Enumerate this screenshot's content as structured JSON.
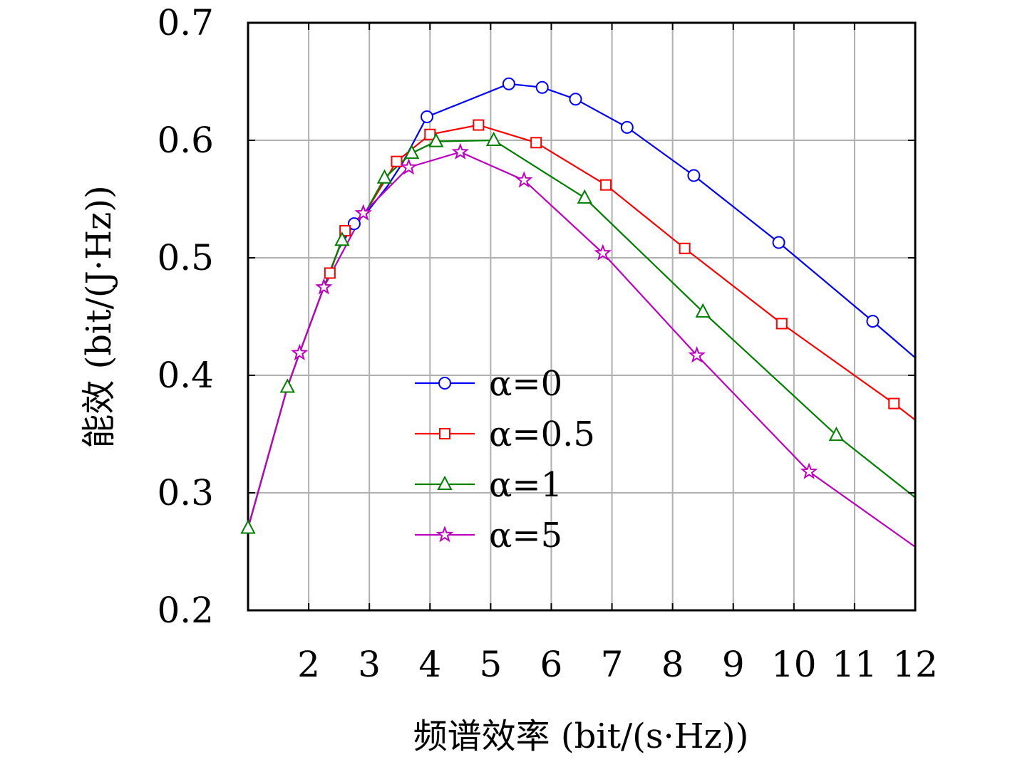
{
  "chart_data": {
    "type": "line",
    "title": "",
    "xlabel": "频谱效率 (bit/(s·Hz))",
    "ylabel": "能效 (bit/(J·Hz))",
    "xlim": [
      1,
      12
    ],
    "ylim": [
      0.2,
      0.7
    ],
    "xticks": [
      "2",
      "3",
      "4",
      "5",
      "6",
      "7",
      "8",
      "9",
      "10",
      "11",
      "12"
    ],
    "yticks": [
      "0.2",
      "0.3",
      "0.4",
      "0.5",
      "0.6",
      "0.7"
    ],
    "grid": true,
    "legend_position": "center",
    "series": [
      {
        "name": "α=0",
        "color": "#0000ff",
        "marker": "circle",
        "x": [
          1.0,
          1.65,
          1.85,
          2.25,
          2.5,
          2.75,
          2.95,
          3.3,
          3.55,
          3.95,
          5.3,
          5.85,
          6.4,
          7.25,
          8.35,
          9.75,
          11.3,
          12.0
        ],
        "y": [
          0.27,
          0.39,
          0.419,
          0.475,
          0.508,
          0.529,
          0.538,
          0.561,
          0.581,
          0.62,
          0.648,
          0.645,
          0.635,
          0.611,
          0.57,
          0.513,
          0.446,
          0.415
        ],
        "markers": [
          [
            2.75,
            0.529
          ],
          [
            3.95,
            0.62
          ],
          [
            5.3,
            0.648
          ],
          [
            5.85,
            0.645
          ],
          [
            6.4,
            0.635
          ],
          [
            7.25,
            0.611
          ],
          [
            8.35,
            0.57
          ],
          [
            9.75,
            0.513
          ],
          [
            11.3,
            0.446
          ]
        ]
      },
      {
        "name": "α=0.5",
        "color": "#ff0000",
        "marker": "square",
        "x": [
          1.0,
          1.65,
          1.85,
          2.25,
          2.35,
          2.6,
          2.95,
          3.45,
          4.0,
          4.8,
          5.75,
          6.9,
          8.2,
          9.8,
          11.65,
          12.0
        ],
        "y": [
          0.27,
          0.39,
          0.419,
          0.475,
          0.487,
          0.523,
          0.54,
          0.582,
          0.605,
          0.613,
          0.598,
          0.562,
          0.508,
          0.444,
          0.376,
          0.362
        ],
        "markers": [
          [
            2.35,
            0.487
          ],
          [
            2.6,
            0.523
          ],
          [
            3.45,
            0.582
          ],
          [
            4.0,
            0.605
          ],
          [
            4.8,
            0.613
          ],
          [
            5.75,
            0.598
          ],
          [
            6.9,
            0.562
          ],
          [
            8.2,
            0.508
          ],
          [
            9.8,
            0.444
          ],
          [
            11.65,
            0.376
          ]
        ]
      },
      {
        "name": "α=1",
        "color": "#008000",
        "marker": "triangle",
        "x": [
          1.0,
          1.65,
          1.85,
          2.25,
          2.55,
          2.95,
          3.25,
          3.7,
          4.1,
          5.05,
          6.55,
          8.5,
          10.7,
          12.0
        ],
        "y": [
          0.27,
          0.39,
          0.419,
          0.475,
          0.515,
          0.54,
          0.568,
          0.589,
          0.599,
          0.6,
          0.551,
          0.454,
          0.349,
          0.296
        ],
        "markers": [
          [
            1.0,
            0.27
          ],
          [
            1.65,
            0.39
          ],
          [
            2.55,
            0.515
          ],
          [
            3.25,
            0.568
          ],
          [
            3.7,
            0.589
          ],
          [
            4.1,
            0.599
          ],
          [
            5.05,
            0.6
          ],
          [
            6.55,
            0.551
          ],
          [
            8.5,
            0.454
          ],
          [
            10.7,
            0.349
          ]
        ]
      },
      {
        "name": "α=5",
        "color": "#c000c0",
        "marker": "star",
        "x": [
          1.0,
          1.65,
          1.85,
          2.25,
          2.9,
          3.65,
          4.5,
          5.55,
          6.85,
          8.4,
          10.25,
          12.0
        ],
        "y": [
          0.27,
          0.39,
          0.419,
          0.475,
          0.538,
          0.577,
          0.59,
          0.566,
          0.504,
          0.417,
          0.318,
          0.254
        ],
        "markers": [
          [
            1.85,
            0.419
          ],
          [
            2.25,
            0.475
          ],
          [
            2.9,
            0.538
          ],
          [
            3.65,
            0.577
          ],
          [
            4.5,
            0.59
          ],
          [
            5.55,
            0.566
          ],
          [
            6.85,
            0.504
          ],
          [
            8.4,
            0.417
          ],
          [
            10.25,
            0.318
          ]
        ]
      }
    ]
  }
}
